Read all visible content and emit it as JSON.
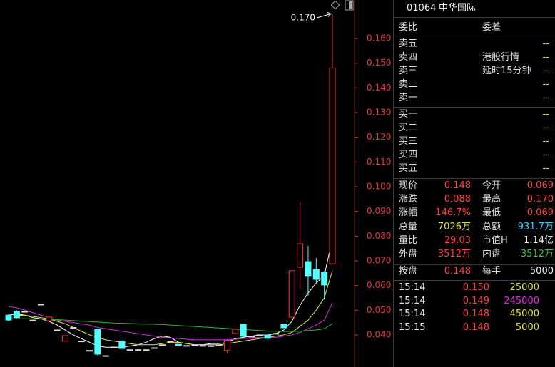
{
  "chart_data": {
    "type": "candlestick",
    "open": [
      0.048,
      0.0495,
      0.0495,
      0.046,
      0.0524,
      0.0457,
      0.042,
      0.0375,
      0.043,
      0.0375,
      0.0337,
      0.0423,
      0.0316,
      0.0351,
      0.0375,
      0.034,
      0.034,
      0.034,
      0.0348,
      0.036,
      0.0374,
      0.0362,
      0.0357,
      0.0359,
      0.0357,
      0.0356,
      0.0359,
      0.0337,
      0.0406,
      0.0443,
      0.0394,
      0.04,
      0.04,
      0.0406,
      0.0443,
      0.0472,
      0.0674,
      0.0697,
      0.0665,
      0.0654,
      0.0688
    ],
    "close": [
      0.046,
      0.047,
      0.0495,
      0.046,
      0.0524,
      0.0472,
      0.042,
      0.0397,
      0.043,
      0.0375,
      0.0337,
      0.0322,
      0.0316,
      0.0351,
      0.0345,
      0.034,
      0.034,
      0.034,
      0.0348,
      0.036,
      0.0374,
      0.0357,
      0.0357,
      0.0359,
      0.0357,
      0.0356,
      0.0359,
      0.0378,
      0.0423,
      0.0394,
      0.0394,
      0.04,
      0.0386,
      0.0406,
      0.0429,
      0.066,
      0.0769,
      0.0637,
      0.0625,
      0.0602,
      0.148
    ],
    "high": [
      0.0485,
      0.05,
      0.0495,
      0.0462,
      0.0524,
      0.0475,
      0.0422,
      0.0398,
      0.043,
      0.0377,
      0.0338,
      0.0425,
      0.0316,
      0.0352,
      0.0377,
      0.0341,
      0.0342,
      0.0341,
      0.0349,
      0.0362,
      0.0376,
      0.0363,
      0.0358,
      0.036,
      0.0358,
      0.0357,
      0.036,
      0.0383,
      0.0425,
      0.0445,
      0.0395,
      0.0402,
      0.0401,
      0.0408,
      0.0445,
      0.066,
      0.0937,
      0.076,
      0.0711,
      0.0659,
      0.17
    ],
    "low": [
      0.0455,
      0.0468,
      0.0495,
      0.0458,
      0.0524,
      0.0455,
      0.0418,
      0.0373,
      0.043,
      0.0373,
      0.0336,
      0.0318,
      0.0316,
      0.0349,
      0.0343,
      0.0339,
      0.0338,
      0.0339,
      0.0347,
      0.0358,
      0.0372,
      0.0355,
      0.0356,
      0.0357,
      0.0355,
      0.0354,
      0.0357,
      0.0325,
      0.0404,
      0.0392,
      0.0392,
      0.0399,
      0.0384,
      0.0405,
      0.0427,
      0.047,
      0.0587,
      0.0559,
      0.0608,
      0.0544,
      0.0688
    ],
    "up_color": "#ff3232",
    "down_color": "#54ffff",
    "flat_color": "#dddddd",
    "series": [
      {
        "color": "#ffffff",
        "values": [
          0.048,
          0.0485,
          0.048,
          0.047,
          0.0465,
          0.0455,
          0.044,
          0.042,
          0.04,
          0.0385,
          0.037,
          0.0355,
          0.035,
          0.035,
          0.035,
          0.0355,
          0.036,
          0.037,
          0.0385,
          0.0395,
          0.039,
          0.037,
          0.0365,
          0.036,
          0.036,
          0.0365,
          0.0365,
          0.037,
          0.0385,
          0.039,
          0.0395,
          0.04,
          0.04,
          0.0405,
          0.042,
          0.0455,
          0.052,
          0.057,
          0.061,
          0.064,
          0.079
        ]
      },
      {
        "color": "#e8e84a",
        "values": [
          0.0475,
          0.0478,
          0.048,
          0.0475,
          0.047,
          0.0465,
          0.0455,
          0.0445,
          0.043,
          0.0415,
          0.04,
          0.039,
          0.038,
          0.0375,
          0.037,
          0.0365,
          0.036,
          0.036,
          0.036,
          0.0365,
          0.037,
          0.037,
          0.0365,
          0.036,
          0.036,
          0.036,
          0.036,
          0.0365,
          0.037,
          0.0375,
          0.038,
          0.0385,
          0.039,
          0.0395,
          0.04,
          0.041,
          0.0435,
          0.046,
          0.05,
          0.055,
          0.066
        ]
      },
      {
        "color": "#d030e0",
        "values": [
          0.0515,
          0.051,
          0.05,
          0.049,
          0.048,
          0.047,
          0.046,
          0.0455,
          0.045,
          0.0445,
          0.044,
          0.043,
          0.0425,
          0.042,
          0.0415,
          0.041,
          0.0405,
          0.04,
          0.0395,
          0.039,
          0.0388,
          0.0385,
          0.0383,
          0.038,
          0.038,
          0.038,
          0.038,
          0.038,
          0.0382,
          0.0385,
          0.0387,
          0.039,
          0.039,
          0.039,
          0.0395,
          0.04,
          0.041,
          0.0425,
          0.044,
          0.046,
          0.053
        ]
      },
      {
        "color": "#2fb52f",
        "values": [
          0.0465,
          0.0466,
          0.0466,
          0.0465,
          0.0464,
          0.0463,
          0.0462,
          0.046,
          0.0458,
          0.0456,
          0.0454,
          0.0452,
          0.045,
          0.0448,
          0.0447,
          0.0446,
          0.0445,
          0.0444,
          0.0443,
          0.0442,
          0.044,
          0.0438,
          0.0436,
          0.0434,
          0.0432,
          0.043,
          0.0428,
          0.0426,
          0.0424,
          0.0422,
          0.042,
          0.0418,
          0.0416,
          0.0415,
          0.0414,
          0.0414,
          0.0415,
          0.0418,
          0.042,
          0.0425,
          0.0445
        ]
      }
    ],
    "annotation": {
      "value": 0.17,
      "label": "0.170"
    },
    "ylim": [
      0.027,
      0.1756
    ],
    "yticks": [
      {
        "value": 0.04,
        "label": "0.040"
      },
      {
        "value": 0.05,
        "label": "0.050"
      },
      {
        "value": 0.06,
        "label": "0.060"
      },
      {
        "value": 0.07,
        "label": "0.070"
      },
      {
        "value": 0.08,
        "label": "0.080"
      },
      {
        "value": 0.09,
        "label": "0.090"
      },
      {
        "value": 0.1,
        "label": "0.100"
      },
      {
        "value": 0.11,
        "label": "0.110"
      },
      {
        "value": 0.12,
        "label": "0.120"
      },
      {
        "value": 0.13,
        "label": "0.130"
      },
      {
        "value": 0.14,
        "label": "0.140"
      },
      {
        "value": 0.15,
        "label": "0.150"
      },
      {
        "value": 0.16,
        "label": "0.160"
      }
    ],
    "tick_color": "#e23a3a"
  },
  "panel": {
    "code": "01064",
    "name": "中华国际",
    "ratio_label": "委比",
    "diff_label": "委差",
    "asks": [
      "卖五",
      "卖四",
      "卖三",
      "卖二",
      "卖一"
    ],
    "bids": [
      "买一",
      "买二",
      "买三",
      "买四",
      "买五"
    ],
    "empty": "--",
    "notice": [
      "港股行情",
      "延时15分钟"
    ],
    "stats": [
      [
        "现价",
        "0.148",
        "今开",
        "0.069"
      ],
      [
        "涨跌",
        "0.088",
        "最高",
        "0.170"
      ],
      [
        "涨幅",
        "146.7%",
        "最低",
        "0.069"
      ],
      [
        "总量",
        "7026万",
        "总额",
        "931.7万"
      ],
      [
        "量比",
        "29.03",
        "市值H",
        "1.14亿"
      ],
      [
        "外盘",
        "3512万",
        "内盘",
        "3512万"
      ]
    ],
    "quote": [
      "按盘",
      "0.148",
      "每手",
      "5000"
    ],
    "trades": [
      [
        "15:14",
        "0.150",
        "25000"
      ],
      [
        "15:14",
        "0.149",
        "245000"
      ],
      [
        "15:14",
        "0.148",
        "45000"
      ],
      [
        "15:15",
        "0.148",
        "5000"
      ]
    ]
  }
}
